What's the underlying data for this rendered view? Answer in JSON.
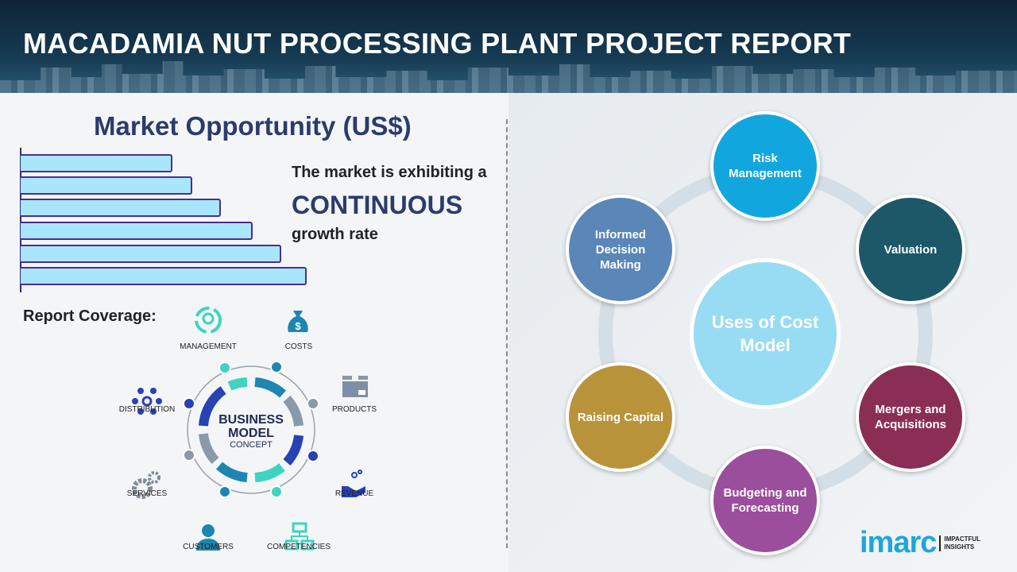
{
  "header": {
    "title": "MACADAMIA NUT PROCESSING PLANT PROJECT REPORT"
  },
  "market": {
    "title": "Market Opportunity (US$)",
    "bar_levels": [
      0.53,
      0.6,
      0.7,
      0.81,
      0.91,
      1.0
    ],
    "line1": "The market is exhibiting a",
    "line2": "CONTINUOUS",
    "line3": "growth rate",
    "bar_fill": "#a9e6fb",
    "bar_border": "#4b2e8e"
  },
  "coverage": {
    "title": "Report Coverage:",
    "items": [
      "MANAGEMENT",
      "COSTS",
      "PRODUCTS",
      "REVENUE",
      "COMPETENCIES",
      "CUSTOMERS",
      "SERVICES",
      "DISTRIBUTION"
    ],
    "center_main": "BUSINESS MODEL",
    "center_sub": "CONCEPT"
  },
  "uses": {
    "center": "Uses of Cost Model",
    "nodes": [
      {
        "label": "Risk Management",
        "color": "#12a6de"
      },
      {
        "label": "Valuation",
        "color": "#1c5868"
      },
      {
        "label": "Mergers and Acquisitions",
        "color": "#8a2e55"
      },
      {
        "label": "Budgeting and Forecasting",
        "color": "#9a4e9c"
      },
      {
        "label": "Raising Capital",
        "color": "#b8933a"
      },
      {
        "label": "Informed Decision Making",
        "color": "#5a86b8"
      }
    ]
  },
  "logo": {
    "name": "imarc",
    "tagline1": "IMPACTFUL",
    "tagline2": "INSIGHTS"
  }
}
